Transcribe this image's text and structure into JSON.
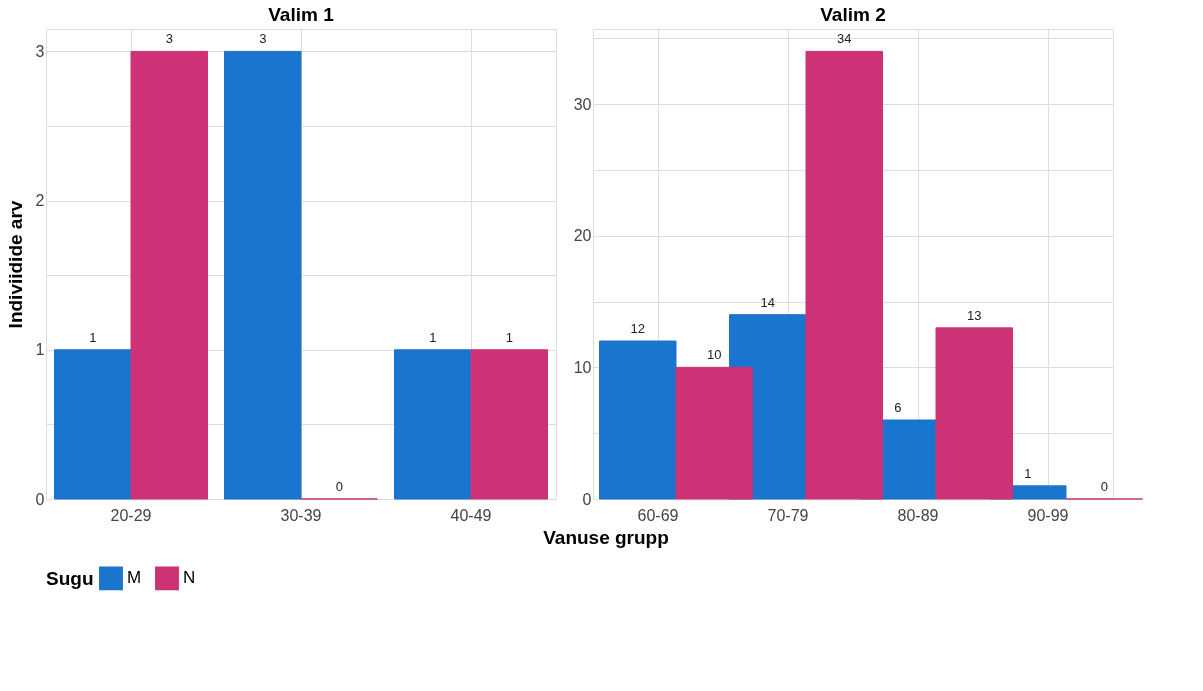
{
  "chart_data": [
    {
      "type": "bar",
      "title": "Valim 1",
      "xlabel": "Vanuse grupp",
      "ylabel": "Indiviidide arv",
      "legend_title": "Sugu",
      "legend": "bottom",
      "grid": true,
      "data_labels": true,
      "categories": [
        "20-29",
        "30-39",
        "40-49"
      ],
      "series": [
        {
          "name": "M",
          "color": "#1a75cf",
          "values": [
            1,
            3,
            1
          ]
        },
        {
          "name": "N",
          "color": "#cc3275",
          "values": [
            3,
            0,
            1
          ]
        }
      ],
      "ylim": [
        0,
        3.15
      ],
      "yticks": [
        0,
        {
          "value": 0.5,
          "label": null
        },
        1,
        {
          "value": 1.5,
          "label": null
        },
        2,
        {
          "value": 2.5,
          "label": null
        },
        3
      ]
    },
    {
      "type": "bar",
      "title": "Valim 2",
      "legend": "bottom",
      "grid": true,
      "data_labels": true,
      "categories": [
        "60-69",
        "70-79",
        "80-89",
        "90-99"
      ],
      "series": [
        {
          "name": "M",
          "color": "#1a75cf",
          "values": [
            12,
            14,
            6,
            1
          ]
        },
        {
          "name": "N",
          "color": "#cc3275",
          "values": [
            10,
            34,
            13,
            0
          ]
        }
      ],
      "ylim": [
        0,
        35.7
      ],
      "yticks": [
        0,
        {
          "value": 5,
          "label": null
        },
        10,
        {
          "value": 15,
          "label": null
        },
        20,
        {
          "value": 25,
          "label": null
        },
        30,
        {
          "value": 35,
          "label": null
        }
      ]
    }
  ]
}
